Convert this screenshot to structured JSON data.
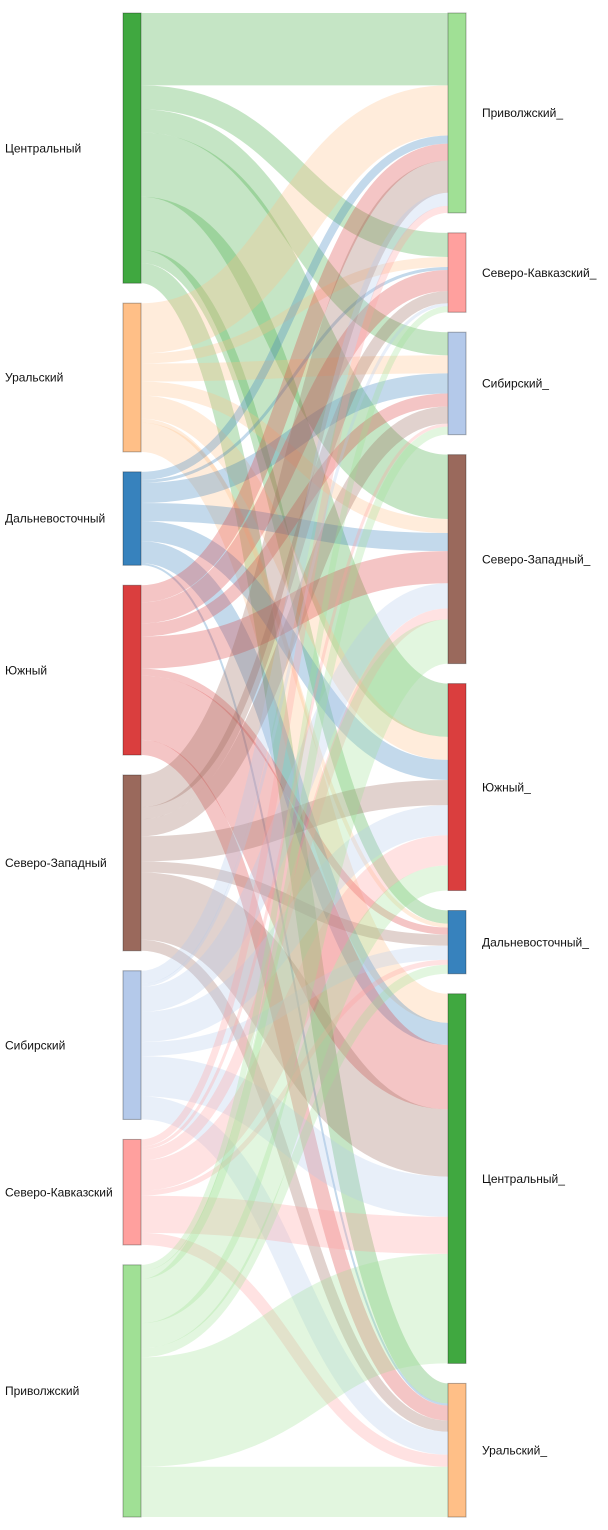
{
  "chart_data": {
    "type": "sankey",
    "sources": [
      {
        "name": "Центральный",
        "color": "#40a840"
      },
      {
        "name": "Уральский",
        "color": "#ffbf87"
      },
      {
        "name": "Дальневосточный",
        "color": "#3782bd"
      },
      {
        "name": "Южный",
        "color": "#da3e3e"
      },
      {
        "name": "Северо-Западный",
        "color": "#9a695c"
      },
      {
        "name": "Сибирский",
        "color": "#b4c9ea"
      },
      {
        "name": "Северо-Кавказский",
        "color": "#ffa09e"
      },
      {
        "name": "Приволжский",
        "color": "#a0e095"
      }
    ],
    "targets": [
      {
        "name": "Приволжский_",
        "color": "#a0e095"
      },
      {
        "name": "Северо-Кавказский_",
        "color": "#ffa09e"
      },
      {
        "name": "Сибирский_",
        "color": "#b4c9ea"
      },
      {
        "name": "Северо-Западный_",
        "color": "#9a695c"
      },
      {
        "name": "Южный_",
        "color": "#da3e3e"
      },
      {
        "name": "Дальневосточный_",
        "color": "#3782bd"
      },
      {
        "name": "Центральный_",
        "color": "#40a840"
      },
      {
        "name": "Уральский_",
        "color": "#ffbf87"
      }
    ],
    "flows": [
      [
        72,
        24,
        23,
        64,
        53,
        13,
        0,
        20
      ],
      [
        50,
        10,
        18,
        14,
        23,
        4,
        29,
        0
      ],
      [
        8,
        3,
        20,
        18,
        20,
        0,
        22,
        2
      ],
      [
        17,
        21,
        13,
        32,
        0,
        7,
        64,
        15
      ],
      [
        32,
        12,
        17,
        0,
        25,
        11,
        67,
        11
      ],
      [
        13,
        3,
        0,
        25,
        30,
        14,
        40,
        23
      ],
      [
        7,
        0,
        3,
        11,
        30,
        5,
        37,
        12
      ],
      [
        0,
        6,
        8,
        44,
        25,
        9,
        109,
        50
      ]
    ]
  }
}
